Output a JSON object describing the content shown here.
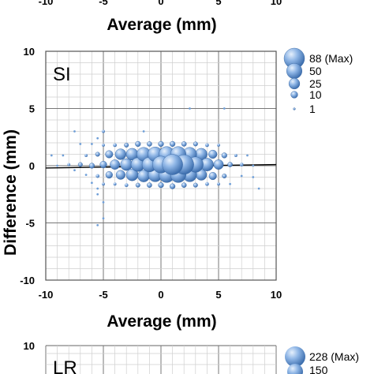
{
  "top_partial": {
    "xticks": [
      "-10",
      "-5",
      "0",
      "5",
      "10"
    ],
    "xlabel": "Average (mm)"
  },
  "chart_data": [
    {
      "type": "scatter",
      "panel_label": "SI",
      "xlabel": "Average (mm)",
      "ylabel": "Difference (mm)",
      "xlim": [
        -10,
        10
      ],
      "ylim": [
        -10,
        10
      ],
      "xticks": [
        "-10",
        "-5",
        "0",
        "5",
        "10"
      ],
      "yticks": [
        "10",
        "5",
        "0",
        "-5",
        "-10"
      ],
      "grid": true,
      "legend": {
        "placement": "right",
        "sizes": [
          88,
          50,
          25,
          10,
          1
        ],
        "labels": [
          "88 (Max)",
          "50",
          "25",
          "10",
          "1"
        ]
      },
      "marker_color": "#6f9fd8",
      "trend_line": [
        [
          -10,
          -0.2
        ],
        [
          10,
          0.1
        ]
      ],
      "points": [
        [
          -9.5,
          0.9,
          1
        ],
        [
          -9.0,
          0.0,
          1
        ],
        [
          -8.5,
          0.9,
          1
        ],
        [
          -8.0,
          0.1,
          2
        ],
        [
          -7.5,
          -0.4,
          1
        ],
        [
          -7.5,
          3.0,
          1
        ],
        [
          -7.0,
          1.9,
          1
        ],
        [
          -7.0,
          0.1,
          4
        ],
        [
          -6.5,
          0.9,
          2
        ],
        [
          -6.5,
          -0.8,
          1
        ],
        [
          -6.0,
          1.9,
          1
        ],
        [
          -6.0,
          0.0,
          6
        ],
        [
          -6.0,
          -1.5,
          1
        ],
        [
          -5.5,
          2.4,
          1
        ],
        [
          -5.5,
          1.0,
          4
        ],
        [
          -5.5,
          -0.9,
          3
        ],
        [
          -5.5,
          -2.0,
          1
        ],
        [
          -5.0,
          0.1,
          10
        ],
        [
          -5.0,
          3.0,
          2
        ],
        [
          -5.0,
          1.8,
          2
        ],
        [
          -5.0,
          -1.6,
          2
        ],
        [
          -5.0,
          -3.2,
          1
        ],
        [
          -5.0,
          -4.6,
          1
        ],
        [
          -5.5,
          -5.2,
          1
        ],
        [
          -5.5,
          -2.5,
          1
        ],
        [
          -4.5,
          1.0,
          12
        ],
        [
          -4.5,
          -0.8,
          10
        ],
        [
          -4.0,
          0.1,
          20
        ],
        [
          -4.0,
          1.8,
          3
        ],
        [
          -4.0,
          -1.6,
          2
        ],
        [
          -3.5,
          1.0,
          25
        ],
        [
          -3.5,
          -0.8,
          18
        ],
        [
          -3.0,
          0.1,
          30
        ],
        [
          -3.0,
          1.8,
          4
        ],
        [
          -3.0,
          -1.7,
          3
        ],
        [
          -2.5,
          1.0,
          30
        ],
        [
          -2.5,
          -0.8,
          30
        ],
        [
          -2.0,
          0.1,
          40
        ],
        [
          -2.0,
          1.9,
          6
        ],
        [
          -2.0,
          -1.7,
          4
        ],
        [
          -1.5,
          1.0,
          40
        ],
        [
          -1.5,
          -0.9,
          30
        ],
        [
          -1.5,
          3.0,
          1
        ],
        [
          -1.0,
          0.1,
          45
        ],
        [
          -1.0,
          1.9,
          5
        ],
        [
          -1.0,
          -1.7,
          5
        ],
        [
          -0.5,
          1.0,
          45
        ],
        [
          -0.5,
          -0.8,
          40
        ],
        [
          0.0,
          0.1,
          60
        ],
        [
          0.0,
          1.9,
          6
        ],
        [
          0.0,
          -1.7,
          6
        ],
        [
          0.5,
          1.0,
          50
        ],
        [
          0.5,
          -0.8,
          50
        ],
        [
          1.0,
          0.1,
          88
        ],
        [
          1.0,
          1.9,
          6
        ],
        [
          1.0,
          -1.8,
          6
        ],
        [
          1.5,
          1.0,
          50
        ],
        [
          1.5,
          -0.8,
          50
        ],
        [
          2.0,
          0.1,
          80
        ],
        [
          2.0,
          1.9,
          5
        ],
        [
          2.0,
          -1.7,
          5
        ],
        [
          2.5,
          1.0,
          40
        ],
        [
          2.5,
          -0.8,
          40
        ],
        [
          2.5,
          5.0,
          1
        ],
        [
          3.0,
          0.1,
          50
        ],
        [
          3.0,
          1.9,
          4
        ],
        [
          3.0,
          -1.7,
          4
        ],
        [
          3.5,
          1.0,
          30
        ],
        [
          3.5,
          -0.8,
          25
        ],
        [
          4.0,
          0.1,
          35
        ],
        [
          4.0,
          1.8,
          3
        ],
        [
          4.0,
          -1.6,
          3
        ],
        [
          4.5,
          1.0,
          15
        ],
        [
          4.5,
          -0.9,
          12
        ],
        [
          5.0,
          0.1,
          20
        ],
        [
          5.0,
          1.8,
          2
        ],
        [
          5.0,
          -1.6,
          2
        ],
        [
          5.5,
          0.9,
          6
        ],
        [
          5.5,
          -0.9,
          4
        ],
        [
          5.5,
          5.0,
          1
        ],
        [
          6.0,
          0.1,
          5
        ],
        [
          6.0,
          -1.6,
          1
        ],
        [
          6.5,
          0.9,
          2
        ],
        [
          7.0,
          0.1,
          3
        ],
        [
          7.0,
          -0.9,
          1
        ],
        [
          7.5,
          0.9,
          1
        ],
        [
          8.0,
          -1.0,
          1
        ],
        [
          8.5,
          -2.0,
          1
        ],
        [
          8.0,
          0.0,
          1
        ]
      ]
    },
    {
      "type": "scatter",
      "panel_label": "LR",
      "ylim_top": "10",
      "legend": {
        "labels": [
          "228 (Max)",
          "150"
        ]
      }
    }
  ]
}
